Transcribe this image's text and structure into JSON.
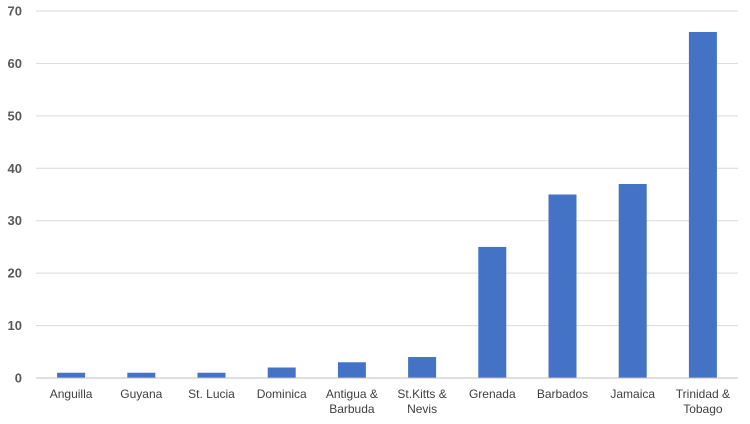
{
  "chart_data": {
    "type": "bar",
    "title": "",
    "xlabel": "",
    "ylabel": "",
    "categories": [
      [
        "Anguilla"
      ],
      [
        "Guyana"
      ],
      [
        "St. Lucia"
      ],
      [
        "Dominica"
      ],
      [
        "Antigua &",
        "Barbuda"
      ],
      [
        "St.Kitts &",
        "Nevis"
      ],
      [
        "Grenada"
      ],
      [
        "Barbados"
      ],
      [
        "Jamaica"
      ],
      [
        "Trinidad &",
        "Tobago"
      ]
    ],
    "values": [
      1,
      1,
      1,
      2,
      3,
      4,
      25,
      35,
      37,
      66
    ],
    "ylim": [
      0,
      70
    ],
    "yticks": [
      0,
      10,
      20,
      30,
      40,
      50,
      60,
      70
    ],
    "grid": true,
    "legend": "none",
    "bar_color": "#4472C4",
    "grid_color": "#D9D9D9",
    "axis_color": "#BFBFBF"
  }
}
